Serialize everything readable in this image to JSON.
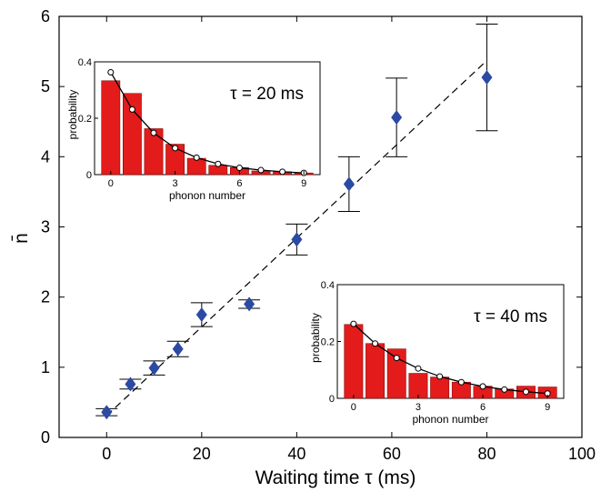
{
  "chart_data": {
    "type": "scatter",
    "xlabel": "Waiting time τ (ms)",
    "ylabel": "n̄",
    "xlim": [
      -10,
      100
    ],
    "ylim": [
      0,
      6
    ],
    "xticks": [
      0,
      20,
      40,
      60,
      80,
      100
    ],
    "yticks": [
      0,
      1,
      2,
      3,
      4,
      5,
      6
    ],
    "colors": {
      "marker": "#2b4aa3",
      "bar": "#e31b1b",
      "fit": "#000000"
    },
    "points": [
      {
        "x": 0,
        "y": 0.36,
        "err": 0.05
      },
      {
        "x": 5,
        "y": 0.76,
        "err": 0.07
      },
      {
        "x": 10,
        "y": 0.99,
        "err": 0.1
      },
      {
        "x": 15,
        "y": 1.26,
        "err": 0.11
      },
      {
        "x": 20,
        "y": 1.75,
        "err": 0.17
      },
      {
        "x": 30,
        "y": 1.9,
        "err": 0.06
      },
      {
        "x": 40,
        "y": 2.82,
        "err": 0.22
      },
      {
        "x": 51,
        "y": 3.61,
        "err": 0.39
      },
      {
        "x": 61,
        "y": 4.56,
        "err": 0.56
      },
      {
        "x": 80,
        "y": 5.13,
        "err": 0.76
      }
    ],
    "fit_line": {
      "x": [
        0,
        80
      ],
      "y": [
        0.31,
        5.37
      ]
    },
    "insets": [
      {
        "annotation": "τ = 20 ms",
        "xlabel": "phonon number",
        "ylabel": "probability",
        "xticks": [
          0,
          3,
          6,
          9
        ],
        "yticks": [
          0,
          0.2,
          0.4
        ],
        "yticklabels": [
          "0",
          "0.2",
          "0.4"
        ],
        "ylim": [
          0,
          0.4
        ],
        "bars": [
          0.333,
          0.288,
          0.163,
          0.108,
          0.058,
          0.033,
          0.025,
          0.013,
          0.01,
          0.006
        ],
        "fit": [
          0.363,
          0.231,
          0.148,
          0.094,
          0.06,
          0.038,
          0.024,
          0.016,
          0.01,
          0.006
        ]
      },
      {
        "annotation": "τ = 40 ms",
        "xlabel": "phonon number",
        "ylabel": "probability",
        "xticks": [
          0,
          3,
          6,
          9
        ],
        "yticks": [
          0,
          0.2,
          0.4
        ],
        "yticklabels": [
          "0",
          "0.2",
          "0.4"
        ],
        "ylim": [
          0,
          0.4
        ],
        "bars": [
          0.26,
          0.193,
          0.174,
          0.088,
          0.075,
          0.057,
          0.043,
          0.033,
          0.043,
          0.04
        ],
        "fit": [
          0.262,
          0.193,
          0.142,
          0.105,
          0.077,
          0.057,
          0.042,
          0.031,
          0.023,
          0.017
        ]
      }
    ]
  }
}
